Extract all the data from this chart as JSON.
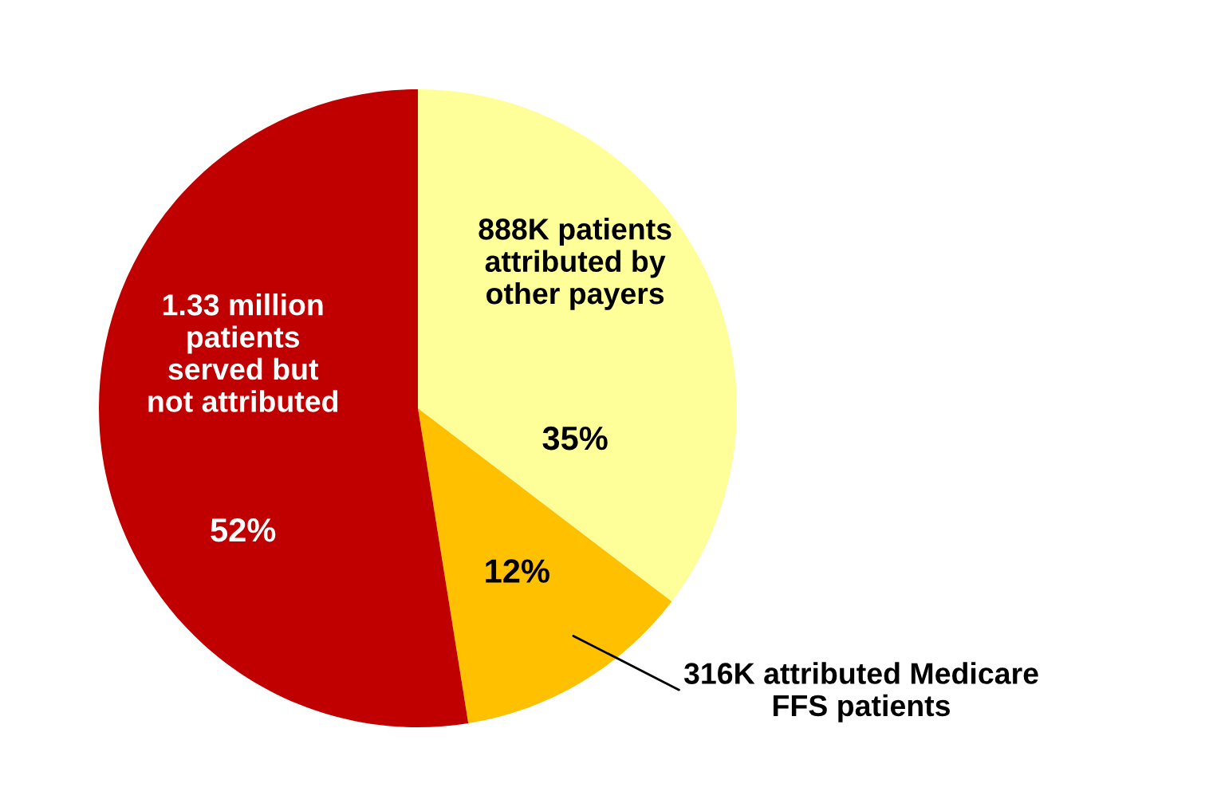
{
  "chart_data": {
    "type": "pie",
    "categories": [
      "888K patients\nattributed by\nother payers",
      "316K attributed Medicare\nFFS patients",
      "1.33 million\npatients\nserved but\nnot attributed"
    ],
    "values": [
      35,
      12,
      52
    ],
    "colors": [
      "#ffff99",
      "#ffc000",
      "#c00000"
    ],
    "value_labels": [
      "35%",
      "12%",
      "52%"
    ]
  }
}
